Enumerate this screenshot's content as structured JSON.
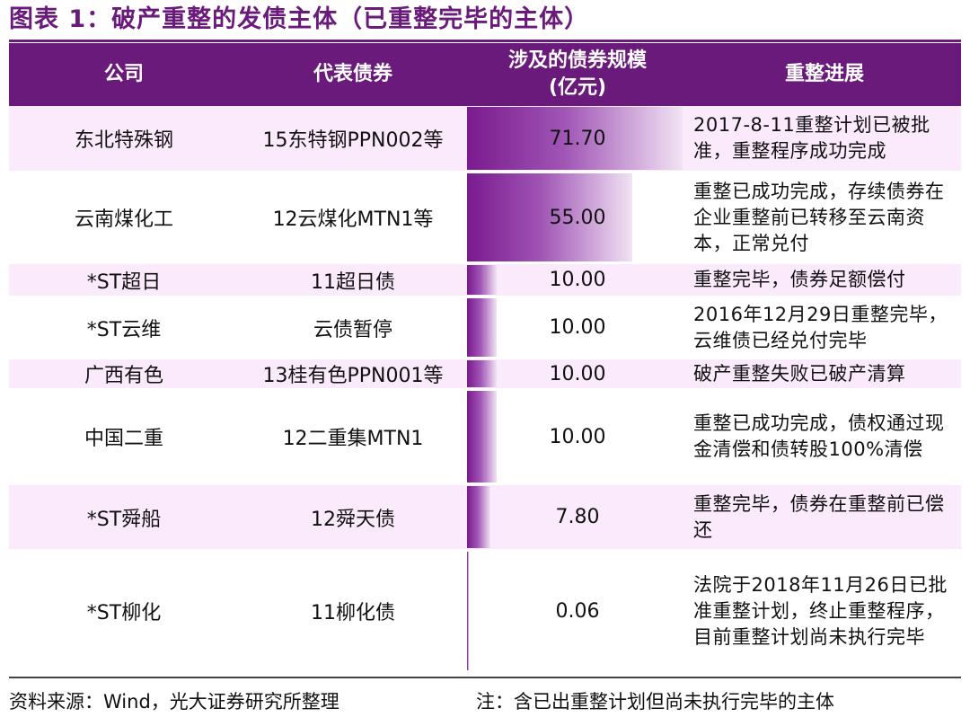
{
  "title": "图表 1：破产重整的发债主体（已重整完毕的主体）",
  "columns": [
    "公司",
    "代表债券",
    "涉及的债券规模",
    "(亿元)",
    "重整进展"
  ],
  "rows": [
    {
      "company": "东北特殊钢",
      "bond": "15东特钢PPN002等",
      "amount": 71.7,
      "amount_text": "71.70",
      "progress": "2017-8-11重整计划已被批准，重整程序成功完成"
    },
    {
      "company": "云南煤化工",
      "bond": "12云煤化MTN1等",
      "amount": 55.0,
      "amount_text": "55.00",
      "progress": "重整已成功完成，存续债券在企业重整前已转移至云南资本，正常兑付"
    },
    {
      "company": "*ST超日",
      "bond": "11超日债",
      "amount": 10.0,
      "amount_text": "10.00",
      "progress": "重整完毕，债券足额偿付"
    },
    {
      "company": "*ST云维",
      "bond": "云债暂停",
      "amount": 10.0,
      "amount_text": "10.00",
      "progress": "2016年12月29日重整完毕，云维债已经兑付完毕"
    },
    {
      "company": "广西有色",
      "bond": "13桂有色PPN001等",
      "amount": 10.0,
      "amount_text": "10.00",
      "progress": "破产重整失败已破产清算"
    },
    {
      "company": "中国二重",
      "bond": "12二重集MTN1",
      "amount": 10.0,
      "amount_text": "10.00",
      "progress": "重整已成功完成，债权通过现金清偿和债转股100%清偿"
    },
    {
      "company": "*ST舜船",
      "bond": "12舜天债",
      "amount": 7.8,
      "amount_text": "7.80",
      "progress": "重整完毕，债券在重整前已偿还"
    },
    {
      "company": "*ST柳化",
      "bond": "11柳化债",
      "amount": 0.06,
      "amount_text": "0.06",
      "progress": "法院于2018年11月26日已批准重整计划，终止重整程序，目前重整计划尚未执行完毕"
    }
  ],
  "bar_max": 71.7,
  "footer": {
    "source": "资料来源：Wind，光大证券研究所整理",
    "note": "注：含已出重整计划但尚未执行完毕的主体"
  },
  "colors": {
    "accent": "#6a1a7a",
    "row_tint": "#fbeafb"
  }
}
